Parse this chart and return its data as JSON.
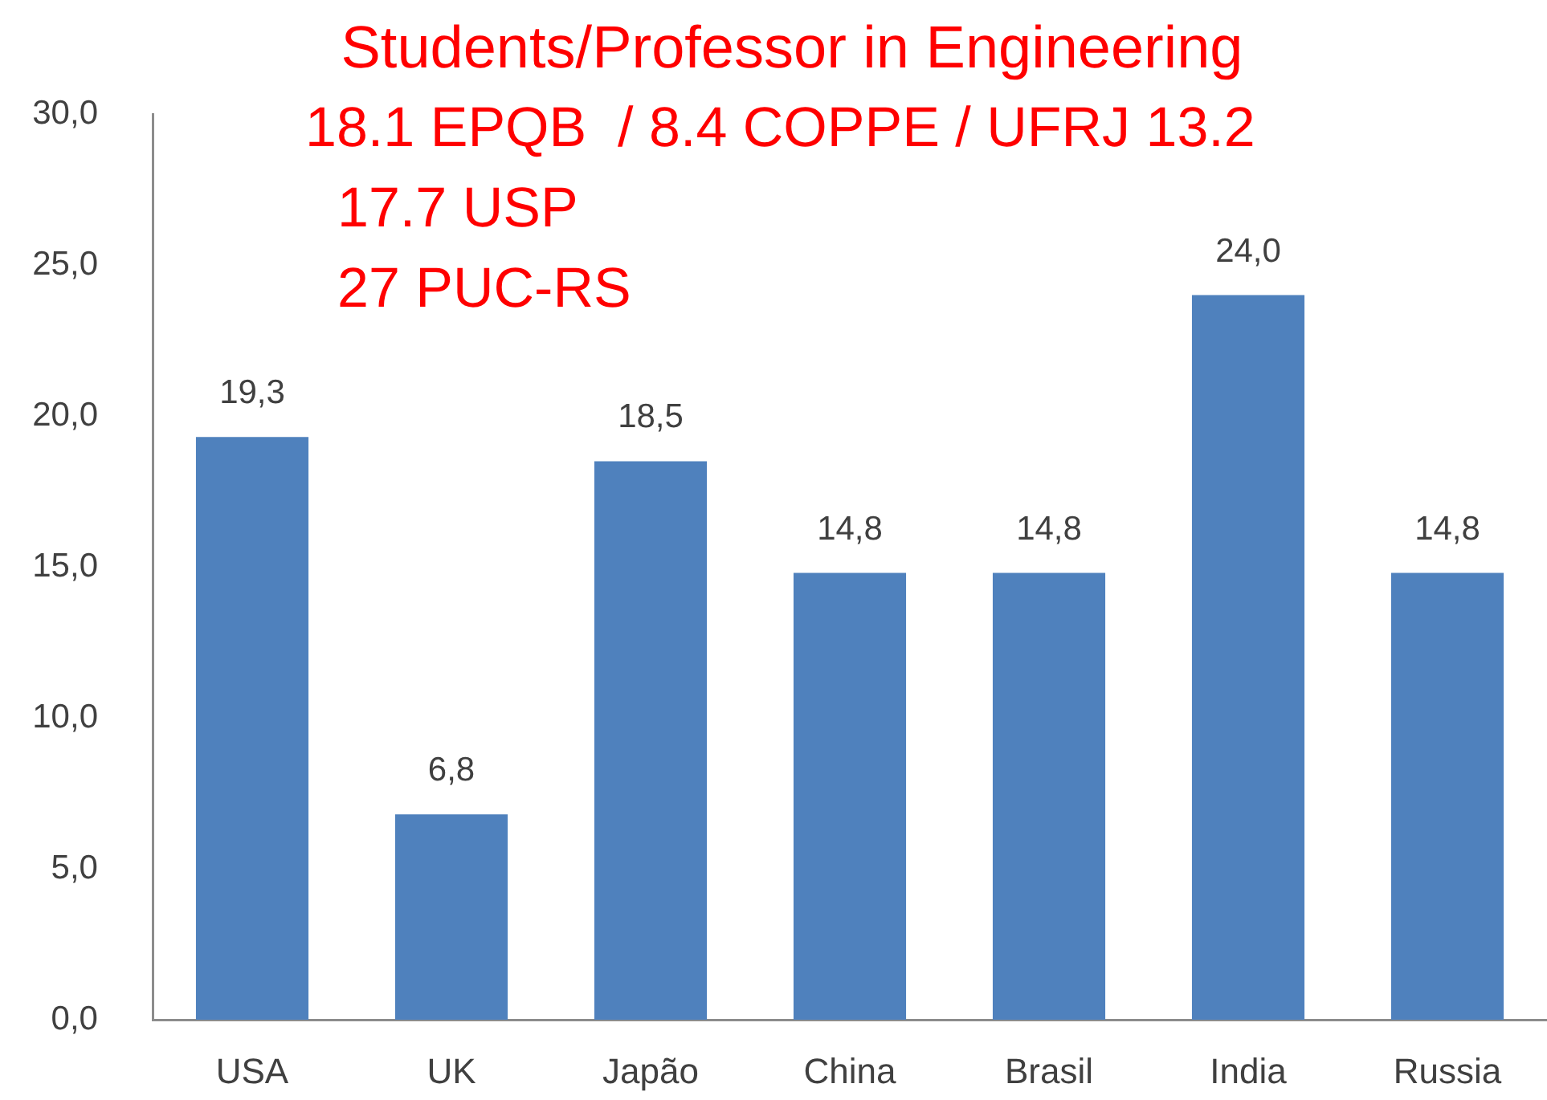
{
  "chart_data": {
    "type": "bar",
    "title": "Students/Professor in Engineering",
    "annotations": [
      "18.1 EPQB  / 8.4 COPPE / UFRJ 13.2",
      "17.7 USP",
      "27 PUC-RS"
    ],
    "categories": [
      "USA",
      "UK",
      "Japão",
      "China",
      "Brasil",
      "India",
      "Russia"
    ],
    "values": [
      19.3,
      6.8,
      18.5,
      14.8,
      14.8,
      24.0,
      14.8
    ],
    "value_labels": [
      "19,3",
      "6,8",
      "18,5",
      "14,8",
      "14,8",
      "24,0",
      "14,8"
    ],
    "color": "#4f81bd",
    "ylim": [
      0,
      30
    ],
    "yticks": [
      {
        "value": 0,
        "label": "0,0"
      },
      {
        "value": 5,
        "label": "5,0"
      },
      {
        "value": 10,
        "label": "10,0"
      },
      {
        "value": 15,
        "label": "15,0"
      },
      {
        "value": 20,
        "label": "20,0"
      },
      {
        "value": 25,
        "label": "25,0"
      },
      {
        "value": 30,
        "label": "30,0"
      }
    ],
    "grid": false
  }
}
